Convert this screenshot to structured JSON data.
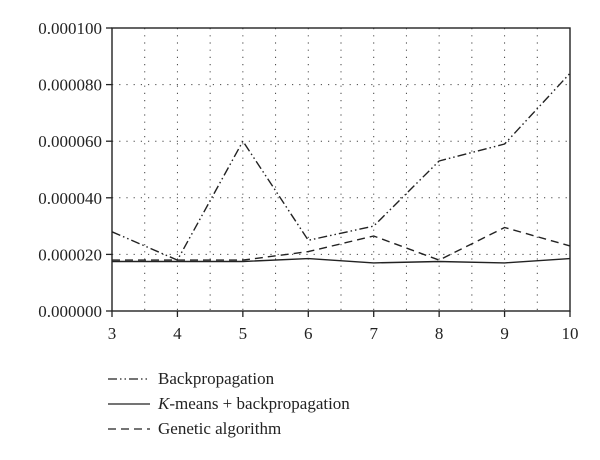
{
  "chart_data": {
    "type": "line",
    "title": "",
    "xlabel": "",
    "ylabel": "",
    "x": [
      3,
      4,
      5,
      6,
      7,
      8,
      9,
      10
    ],
    "xlim": [
      3,
      10
    ],
    "ylim": [
      0,
      0.0001
    ],
    "x_ticks": [
      "3",
      "4",
      "5",
      "6",
      "7",
      "8",
      "9",
      "10"
    ],
    "y_ticks": [
      "0.000000",
      "0.000020",
      "0.000040",
      "0.000060",
      "0.000080",
      "0.000100"
    ],
    "grid": "dotted",
    "legend_position": "bottom",
    "series": [
      {
        "name": "Backpropagation",
        "style": "dash-dot-dot",
        "color": "#222222",
        "values": [
          2.8e-05,
          1.8e-05,
          6e-05,
          2.5e-05,
          3e-05,
          5.3e-05,
          5.9e-05,
          8.4e-05
        ]
      },
      {
        "name": "K-means + backpropagation",
        "style": "solid",
        "color": "#222222",
        "values": [
          1.75e-05,
          1.75e-05,
          1.75e-05,
          1.85e-05,
          1.7e-05,
          1.75e-05,
          1.7e-05,
          1.85e-05
        ]
      },
      {
        "name": "Genetic algorithm",
        "style": "dashed",
        "color": "#222222",
        "values": [
          1.8e-05,
          1.8e-05,
          1.8e-05,
          2.1e-05,
          2.65e-05,
          1.8e-05,
          2.95e-05,
          2.3e-05
        ]
      }
    ]
  },
  "legend": {
    "items": [
      {
        "label": "Backpropagation",
        "style": "dash-dot-dot"
      },
      {
        "label_italic": "K",
        "label_rest": "-means + backpropagation",
        "style": "solid"
      },
      {
        "label": "Genetic algorithm",
        "style": "dashed"
      }
    ]
  }
}
